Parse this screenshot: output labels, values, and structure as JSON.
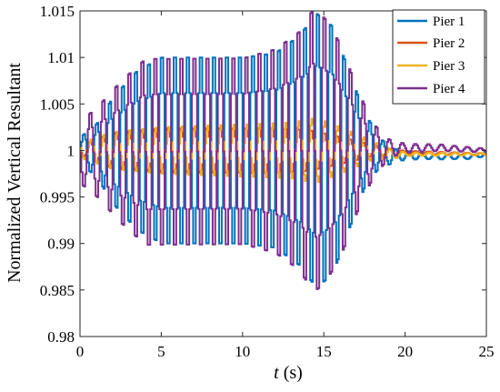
{
  "chart_data": {
    "type": "line",
    "xlabel_var": "t",
    "xlabel_unit": " (s)",
    "ylabel": "Normalized Vertical Resultant",
    "xlim": [
      0,
      25
    ],
    "ylim": [
      0.98,
      1.015
    ],
    "xticks": [
      0,
      5,
      10,
      15,
      20,
      25
    ],
    "xtick_labels": [
      "0",
      "5",
      "10",
      "15",
      "20",
      "25"
    ],
    "yticks": [
      0.98,
      0.985,
      0.99,
      0.995,
      1.0,
      1.005,
      1.01,
      1.015
    ],
    "ytick_labels": [
      "0.98",
      "0.985",
      "0.99",
      "0.995",
      "1",
      "1.005",
      "1.01",
      "1.015"
    ],
    "grid": false,
    "legend_position": "top-right",
    "oscillation_frequency_hz": 1.25,
    "series": [
      {
        "name": "Pier 1",
        "color": "#0072BD",
        "phase": 0.0,
        "mean": [
          [
            0,
            1.0
          ],
          [
            18,
            1.0
          ],
          [
            19,
            0.9995
          ],
          [
            22,
            0.9993
          ],
          [
            24,
            0.9993
          ],
          [
            25,
            0.9996
          ]
        ],
        "amplitude": [
          [
            0,
            0.0015
          ],
          [
            1,
            0.003
          ],
          [
            2,
            0.006
          ],
          [
            3.5,
            0.009
          ],
          [
            5,
            0.0105
          ],
          [
            10,
            0.0105
          ],
          [
            12,
            0.011
          ],
          [
            13.5,
            0.013
          ],
          [
            14.5,
            0.0155
          ],
          [
            15.5,
            0.014
          ],
          [
            16.5,
            0.009
          ],
          [
            17.5,
            0.004
          ],
          [
            18.5,
            0.0015
          ],
          [
            19.5,
            0.0006
          ],
          [
            21,
            0.0003
          ],
          [
            25,
            0.0002
          ]
        ]
      },
      {
        "name": "Pier 2",
        "color": "#D95319",
        "phase": 3.14159,
        "mean": [
          [
            0,
            1.0
          ],
          [
            18,
            1.0
          ],
          [
            19,
            0.9998
          ],
          [
            25,
            0.9996
          ]
        ],
        "amplitude": [
          [
            0,
            0.0005
          ],
          [
            2,
            0.002
          ],
          [
            5,
            0.0025
          ],
          [
            12,
            0.0025
          ],
          [
            14,
            0.0023
          ],
          [
            16,
            0.0015
          ],
          [
            18,
            0.0006
          ],
          [
            20,
            0.0002
          ],
          [
            25,
            0.0001
          ]
        ]
      },
      {
        "name": "Pier 3",
        "color": "#EDB120",
        "phase": 2.8,
        "mean": [
          [
            0,
            1.0
          ],
          [
            18,
            1.0
          ],
          [
            19,
            0.9996
          ],
          [
            25,
            0.9996
          ]
        ],
        "amplitude": [
          [
            0,
            0.0008
          ],
          [
            2,
            0.002
          ],
          [
            5,
            0.0025
          ],
          [
            10,
            0.0028
          ],
          [
            13,
            0.003
          ],
          [
            14.5,
            0.0035
          ],
          [
            16,
            0.0025
          ],
          [
            18,
            0.001
          ],
          [
            20,
            0.0002
          ],
          [
            25,
            0.0001
          ]
        ]
      },
      {
        "name": "Pier 4",
        "color": "#7E2F8E",
        "phase": 3.14159,
        "mean": [
          [
            0,
            0.9998
          ],
          [
            18,
            1.0
          ],
          [
            19,
            1.0002
          ],
          [
            22,
            1.0003
          ],
          [
            25,
            1.0
          ]
        ],
        "amplitude": [
          [
            0,
            0.0035
          ],
          [
            1,
            0.005
          ],
          [
            2.5,
            0.008
          ],
          [
            4,
            0.0105
          ],
          [
            6,
            0.0105
          ],
          [
            10,
            0.0105
          ],
          [
            12,
            0.0115
          ],
          [
            13.5,
            0.0135
          ],
          [
            14.3,
            0.016
          ],
          [
            15,
            0.015
          ],
          [
            16,
            0.012
          ],
          [
            17,
            0.007
          ],
          [
            18,
            0.003
          ],
          [
            19,
            0.001
          ],
          [
            20,
            0.0005
          ],
          [
            25,
            0.0002
          ]
        ]
      }
    ]
  }
}
